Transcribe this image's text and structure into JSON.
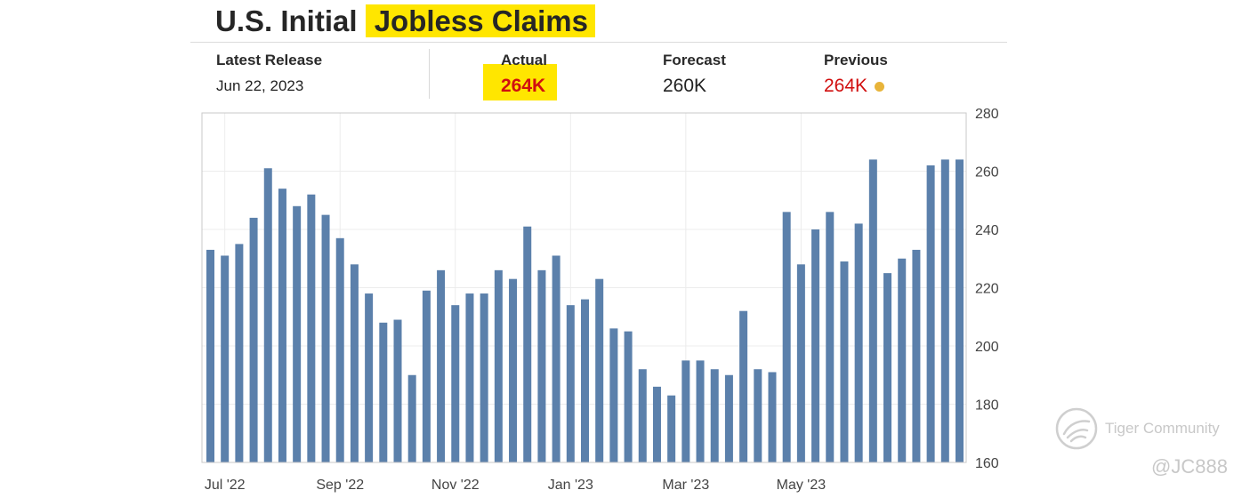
{
  "header": {
    "title_prefix": "U.S. Initial",
    "title_highlight": "Jobless Claims"
  },
  "stats": {
    "latest_release": {
      "label": "Latest Release",
      "value": "Jun 22, 2023"
    },
    "actual": {
      "label": "Actual",
      "value": "264K"
    },
    "forecast": {
      "label": "Forecast",
      "value": "260K"
    },
    "previous": {
      "label": "Previous",
      "value": "264K"
    }
  },
  "colors": {
    "bar": "#5b80ab",
    "highlight": "#ffe600",
    "negative_value": "#d10f0f",
    "previous_dot": "#e8b43a"
  },
  "chart_data": {
    "type": "bar",
    "title": "",
    "xlabel": "",
    "ylabel": "",
    "ylim": [
      160,
      280
    ],
    "yticks": [
      160,
      180,
      200,
      220,
      240,
      260,
      280
    ],
    "y_axis_side": "right",
    "grid": true,
    "x_tick_labels": [
      "Jul '22",
      "Sep '22",
      "Nov '22",
      "Jan '23",
      "Mar '23",
      "May '23"
    ],
    "x_tick_bar_index": [
      1,
      9,
      17,
      25,
      33,
      41
    ],
    "values": [
      233,
      231,
      235,
      244,
      261,
      254,
      248,
      252,
      245,
      237,
      228,
      218,
      208,
      209,
      190,
      219,
      226,
      214,
      218,
      218,
      226,
      223,
      241,
      226,
      231,
      214,
      216,
      223,
      206,
      205,
      192,
      186,
      183,
      195,
      195,
      192,
      190,
      212,
      192,
      191,
      246,
      228,
      240,
      246,
      229,
      242,
      264,
      225,
      230,
      233,
      262,
      264,
      264
    ]
  },
  "watermark": {
    "brand": "Tiger Community",
    "handle": "@JC888"
  }
}
